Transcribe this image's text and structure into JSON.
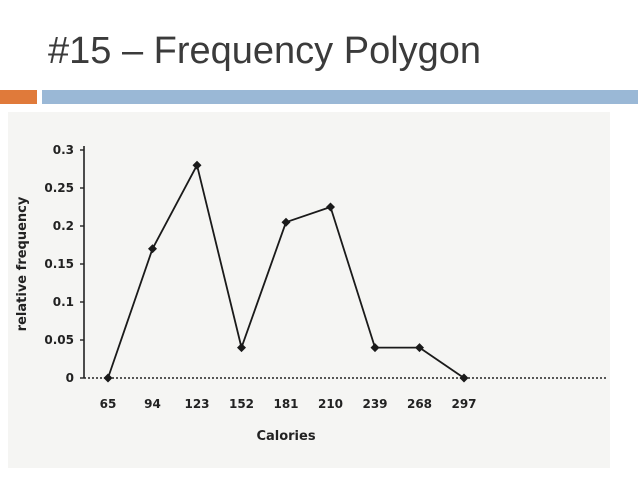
{
  "slide": {
    "title": "#15 – Frequency Polygon",
    "accent_color": "#e07a3a",
    "rule_color": "#9ab8d6"
  },
  "chart_data": {
    "type": "line",
    "xlabel": "Calories",
    "ylabel": "relative frequency",
    "x": [
      65,
      94,
      123,
      152,
      181,
      210,
      239,
      268,
      297
    ],
    "series": [
      {
        "values": [
          0,
          0.17,
          0.28,
          0.04,
          0.205,
          0.225,
          0.04,
          0.04,
          0
        ]
      }
    ],
    "x_ticks": [
      "65",
      "94",
      "123",
      "152",
      "181",
      "210",
      "239",
      "268",
      "297"
    ],
    "y_ticks": [
      "0",
      "0.05",
      "0.1",
      "0.15",
      "0.2",
      "0.25",
      "0.3"
    ],
    "ylim": [
      0,
      0.3
    ],
    "grid": false,
    "marker": "diamond",
    "line_color": "#1a1a1a"
  }
}
